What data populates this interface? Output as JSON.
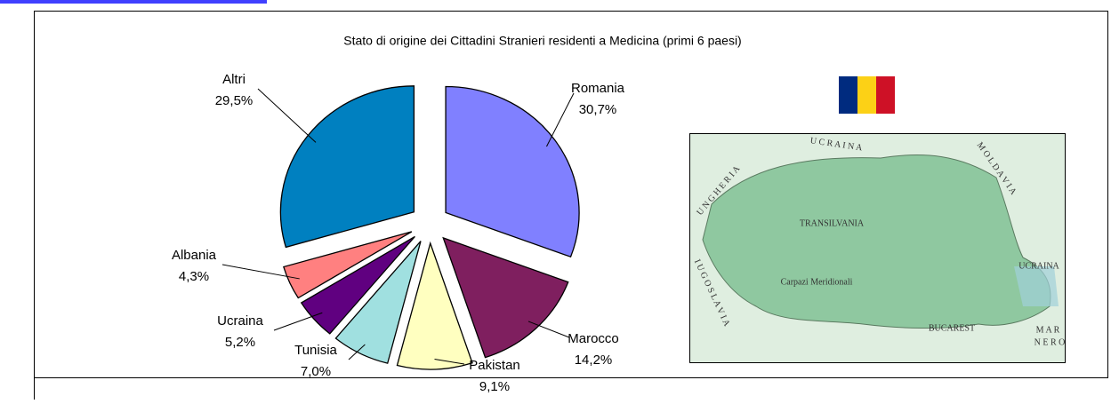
{
  "chart_data": {
    "type": "pie",
    "title": "Stato di origine dei Cittadini Stranieri residenti a Medicina (primi 6 paesi)",
    "categories": [
      "Romania",
      "Marocco",
      "Pakistan",
      "Tunisia",
      "Ucraina",
      "Albania",
      "Altri"
    ],
    "values": [
      30.7,
      14.2,
      9.1,
      7.0,
      5.2,
      4.3,
      29.5
    ],
    "value_labels": [
      "30,7%",
      "14,2%",
      "9,1%",
      "7,0%",
      "5,2%",
      "4,3%",
      "29,5%"
    ],
    "colors": [
      "#8080ff",
      "#7f1f5f",
      "#ffffc0",
      "#a0e0e0",
      "#600080",
      "#ff8080",
      "#0080c0"
    ]
  },
  "map": {
    "labels": [
      "U C R A I N A",
      "M O L D A V I A",
      "U N G H E R I A",
      "I U G O S L A V I A",
      "TRANSILVANIA",
      "Carpazi Meridionali",
      "UCRAINA",
      "BUCAREST",
      "M A R",
      "N E R O"
    ]
  }
}
